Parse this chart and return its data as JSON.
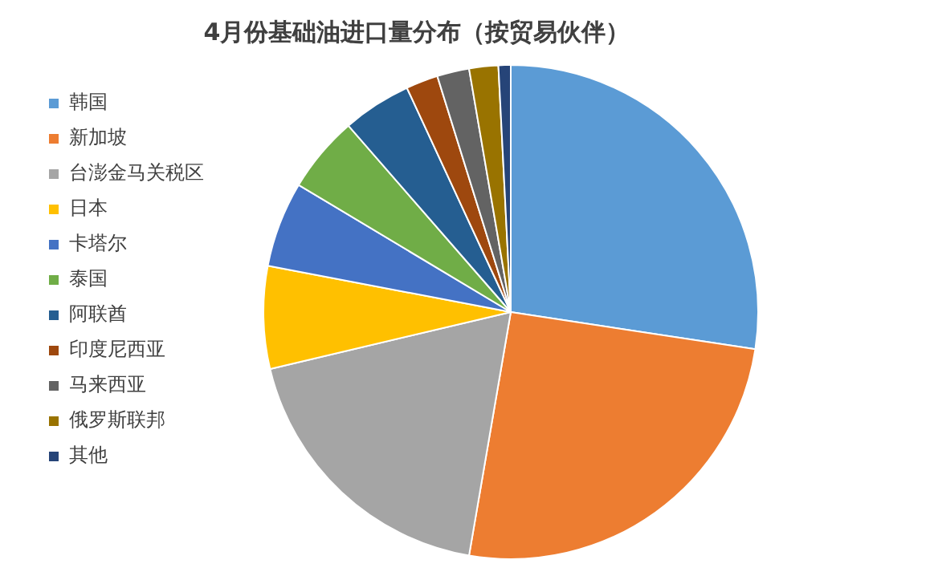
{
  "chart_data": {
    "type": "pie",
    "title": "4月份基础油进口量分布（按贸易伙伴）",
    "categories": [
      "韩国",
      "新加坡",
      "台澎金马关税区",
      "日本",
      "卡塔尔",
      "泰国",
      "阿联酋",
      "印度尼西亚",
      "马来西亚",
      "俄罗斯联邦",
      "其他"
    ],
    "values": [
      27.4,
      25.3,
      18.6,
      6.7,
      5.6,
      5,
      4.5,
      2.1,
      2.1,
      1.9,
      0.8
    ],
    "colors": [
      "#5b9bd5",
      "#ed7d31",
      "#a5a5a5",
      "#ffc000",
      "#4472c4",
      "#70ad47",
      "#255e91",
      "#9e480e",
      "#636363",
      "#997300",
      "#264478"
    ],
    "legend": "left"
  }
}
